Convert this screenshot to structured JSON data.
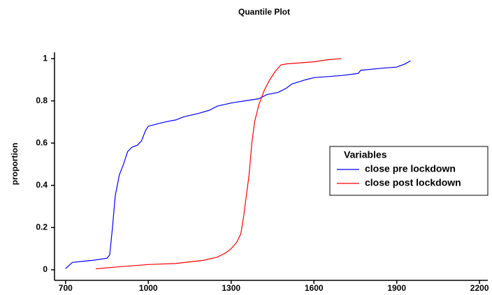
{
  "chart_data": {
    "type": "line",
    "title": "Quantile Plot",
    "y_label": "proportion",
    "legend_title": "Variables",
    "legend": "right",
    "xlim": [
      660,
      2230
    ],
    "xticks": [
      700,
      1000,
      1300,
      1600,
      1900,
      2200
    ],
    "ylim": [
      -0.05,
      1.03
    ],
    "yticks": [
      0,
      0.2,
      0.4,
      0.6,
      0.8,
      1
    ],
    "series": [
      {
        "name": "close pre lockdown",
        "color": "#0000ff",
        "x": [
          700,
          712,
          725,
          760,
          800,
          850,
          860,
          870,
          880,
          895,
          910,
          925,
          940,
          960,
          975,
          990,
          1000,
          1030,
          1060,
          1100,
          1130,
          1180,
          1220,
          1250,
          1300,
          1350,
          1400,
          1430,
          1470,
          1500,
          1520,
          1570,
          1600,
          1700,
          1760,
          1770,
          1850,
          1900,
          1930,
          1950
        ],
        "values": [
          0.005,
          0.02,
          0.035,
          0.04,
          0.045,
          0.055,
          0.07,
          0.2,
          0.35,
          0.45,
          0.5,
          0.56,
          0.58,
          0.59,
          0.61,
          0.66,
          0.68,
          0.69,
          0.7,
          0.71,
          0.725,
          0.74,
          0.755,
          0.775,
          0.79,
          0.8,
          0.81,
          0.83,
          0.84,
          0.86,
          0.88,
          0.9,
          0.91,
          0.92,
          0.93,
          0.945,
          0.955,
          0.96,
          0.975,
          0.99
        ]
      },
      {
        "name": "close post lockdown",
        "color": "#ff0000",
        "x": [
          810,
          900,
          1000,
          1100,
          1200,
          1250,
          1280,
          1300,
          1320,
          1335,
          1345,
          1355,
          1365,
          1375,
          1385,
          1400,
          1420,
          1440,
          1460,
          1480,
          1500,
          1550,
          1600,
          1650,
          1700
        ],
        "values": [
          0.005,
          0.015,
          0.025,
          0.03,
          0.045,
          0.06,
          0.08,
          0.1,
          0.13,
          0.17,
          0.25,
          0.35,
          0.45,
          0.6,
          0.7,
          0.78,
          0.85,
          0.9,
          0.94,
          0.97,
          0.975,
          0.98,
          0.985,
          0.995,
          1.0
        ]
      }
    ]
  }
}
